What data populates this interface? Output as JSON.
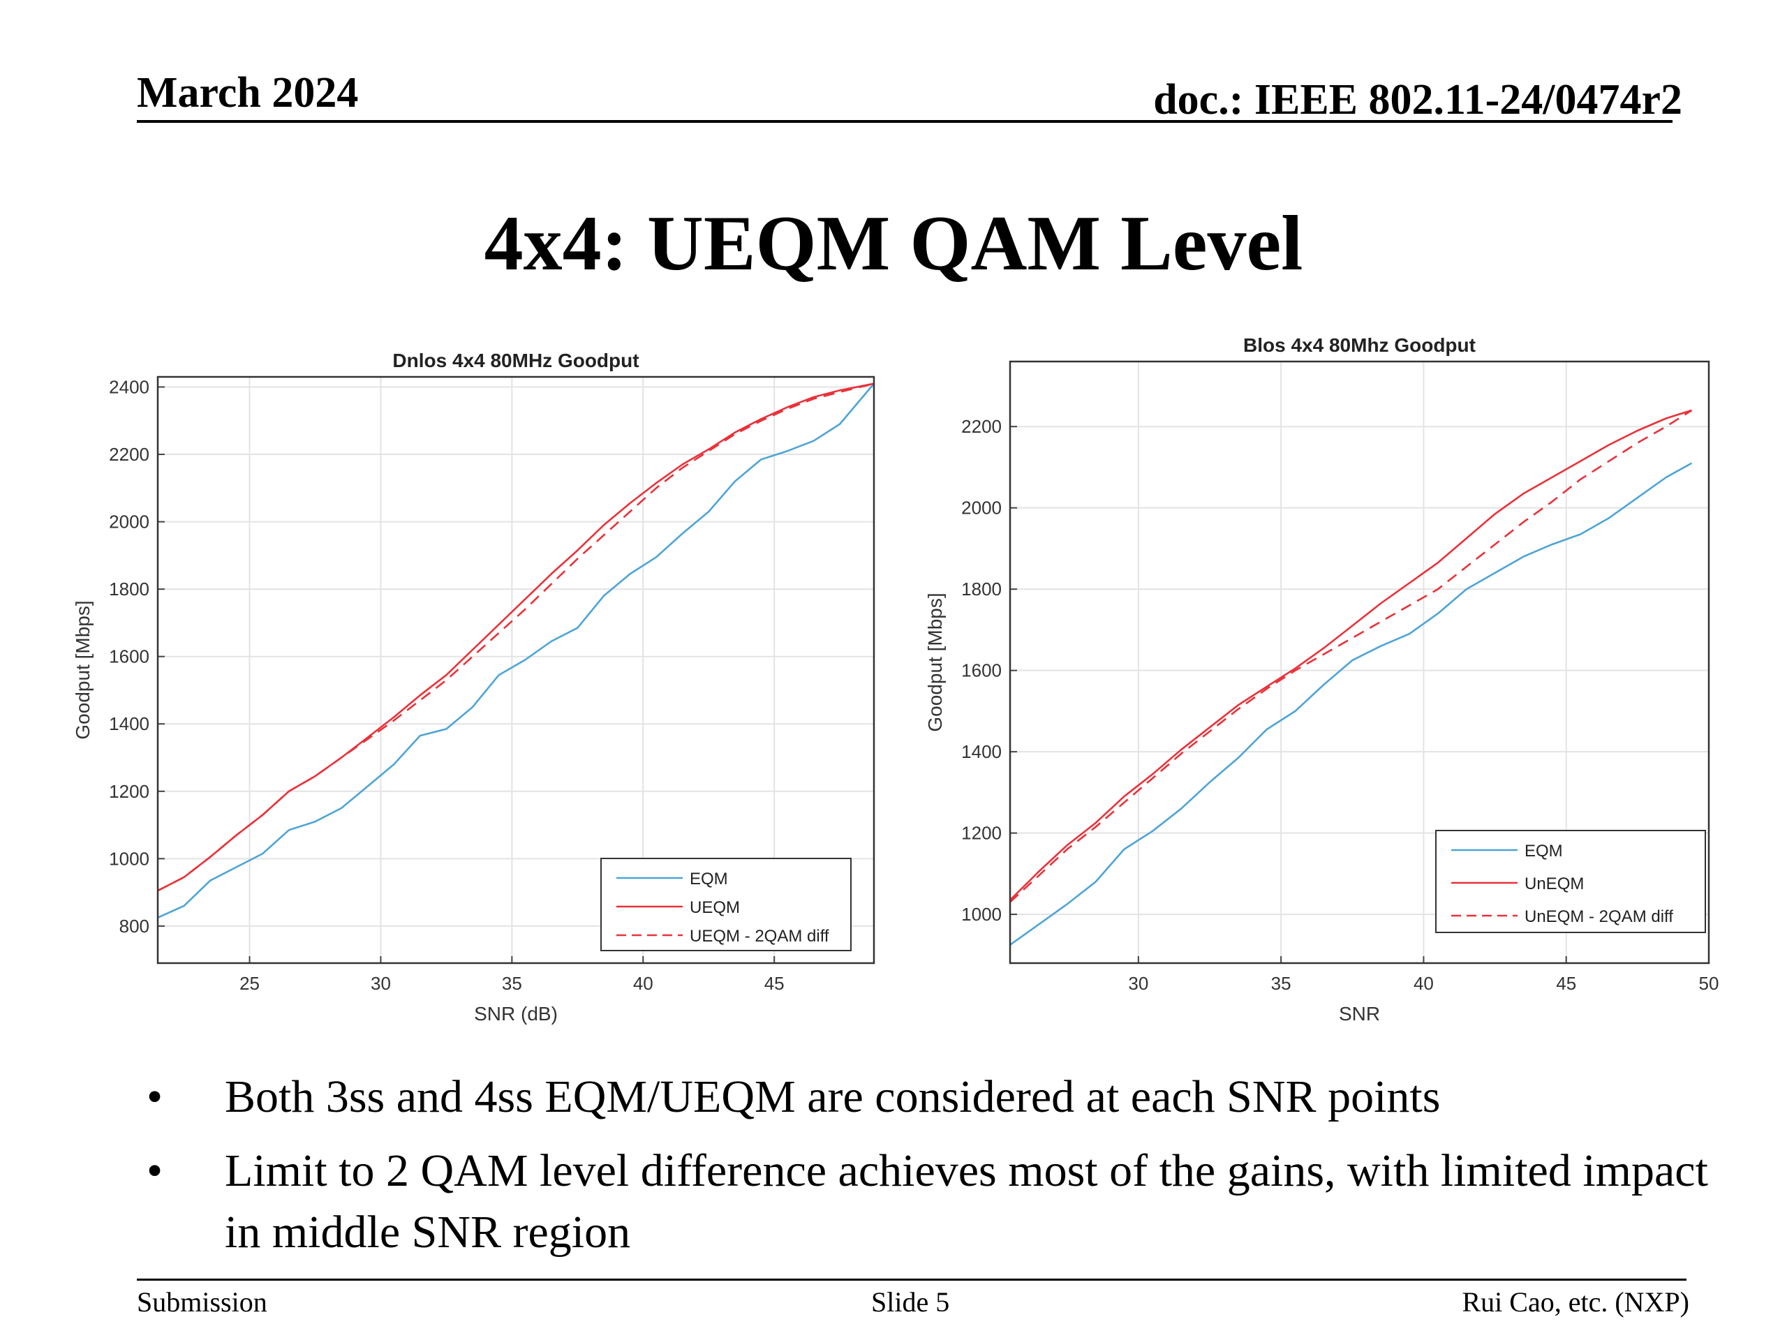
{
  "header": {
    "date": "March 2024",
    "doc": "doc.: IEEE 802.11-24/0474r2"
  },
  "title": "4x4: UEQM QAM Level",
  "bullets": [
    "Both 3ss and 4ss EQM/UEQM are considered at each SNR points",
    "Limit to 2 QAM level difference achieves most of the gains, with limited impact in middle SNR region"
  ],
  "bullet_symbol": "•",
  "footer": {
    "left": "Submission",
    "center": "Slide 5",
    "right": "Rui Cao, etc. (NXP)"
  },
  "colors": {
    "eqm": "#4ea4d6",
    "ueqm": "#e8323a"
  },
  "chart_data": [
    {
      "type": "line",
      "title": "Dnlos 4x4  80MHz Goodput",
      "xlabel": "SNR (dB)",
      "ylabel": "Goodput [Mbps]",
      "xlim": [
        21.5,
        48.8
      ],
      "ylim": [
        690,
        2430
      ],
      "xticks": [
        25,
        30,
        35,
        40,
        45
      ],
      "yticks": [
        800,
        1000,
        1200,
        1400,
        1600,
        1800,
        2000,
        2200,
        2400
      ],
      "grid": true,
      "legend_position": "bottom-right",
      "x": [
        21.5,
        22.5,
        23.5,
        24.5,
        25.5,
        26.5,
        27.5,
        28.5,
        29.5,
        30.5,
        31.5,
        32.5,
        33.5,
        34.5,
        35.5,
        36.5,
        37.5,
        38.5,
        39.5,
        40.5,
        41.5,
        42.5,
        43.5,
        44.5,
        45.5,
        46.5,
        47.5,
        48.8
      ],
      "series": [
        {
          "name": "EQM",
          "color": "#4ea4d6",
          "dash": false,
          "values": [
            825,
            860,
            935,
            975,
            1015,
            1085,
            1110,
            1150,
            1215,
            1280,
            1365,
            1385,
            1450,
            1545,
            1590,
            1645,
            1685,
            1780,
            1845,
            1895,
            1965,
            2030,
            2120,
            2185,
            2210,
            2240,
            2290,
            2410
          ]
        },
        {
          "name": "UEQM",
          "color": "#e8323a",
          "dash": false,
          "values": [
            905,
            945,
            1005,
            1070,
            1130,
            1200,
            1245,
            1300,
            1360,
            1420,
            1485,
            1545,
            1620,
            1695,
            1770,
            1845,
            1915,
            1990,
            2055,
            2115,
            2170,
            2215,
            2265,
            2305,
            2340,
            2370,
            2390,
            2410
          ]
        },
        {
          "name": "UEQM - 2QAM diff",
          "color": "#e8323a",
          "dash": true,
          "values": [
            905,
            945,
            1005,
            1070,
            1130,
            1200,
            1245,
            1300,
            1355,
            1410,
            1470,
            1530,
            1600,
            1670,
            1740,
            1815,
            1890,
            1960,
            2030,
            2100,
            2160,
            2210,
            2260,
            2300,
            2335,
            2365,
            2385,
            2410
          ]
        }
      ]
    },
    {
      "type": "line",
      "title": "Blos 4x4  80Mhz Goodput",
      "xlabel": "SNR",
      "ylabel": "Goodput [Mbps]",
      "xlim": [
        25.5,
        50
      ],
      "ylim": [
        880,
        2360
      ],
      "xticks": [
        30,
        35,
        40,
        45,
        50
      ],
      "yticks": [
        1000,
        1200,
        1400,
        1600,
        1800,
        2000,
        2200
      ],
      "grid": true,
      "legend_position": "bottom-right",
      "x": [
        25.5,
        26.5,
        27.5,
        28.5,
        29.5,
        30.5,
        31.5,
        32.5,
        33.5,
        34.5,
        35.5,
        36.5,
        37.5,
        38.5,
        39.5,
        40.5,
        41.5,
        42.5,
        43.5,
        44.5,
        45.5,
        46.5,
        47.5,
        48.5,
        49.4
      ],
      "series": [
        {
          "name": "EQM",
          "color": "#4ea4d6",
          "dash": false,
          "values": [
            925,
            975,
            1025,
            1080,
            1160,
            1205,
            1260,
            1325,
            1385,
            1455,
            1500,
            1565,
            1625,
            1660,
            1690,
            1740,
            1800,
            1840,
            1880,
            1910,
            1935,
            1975,
            2025,
            2075,
            2110
          ]
        },
        {
          "name": "UnEQM",
          "color": "#e8323a",
          "dash": false,
          "values": [
            1035,
            1105,
            1170,
            1225,
            1290,
            1345,
            1405,
            1460,
            1515,
            1560,
            1605,
            1655,
            1710,
            1765,
            1815,
            1865,
            1925,
            1985,
            2035,
            2075,
            2115,
            2155,
            2190,
            2220,
            2240
          ]
        },
        {
          "name": "UnEQM - 2QAM diff",
          "color": "#e8323a",
          "dash": true,
          "values": [
            1030,
            1095,
            1160,
            1215,
            1275,
            1335,
            1395,
            1450,
            1505,
            1555,
            1600,
            1640,
            1680,
            1720,
            1760,
            1800,
            1855,
            1910,
            1965,
            2015,
            2070,
            2115,
            2160,
            2200,
            2240
          ]
        }
      ]
    }
  ]
}
